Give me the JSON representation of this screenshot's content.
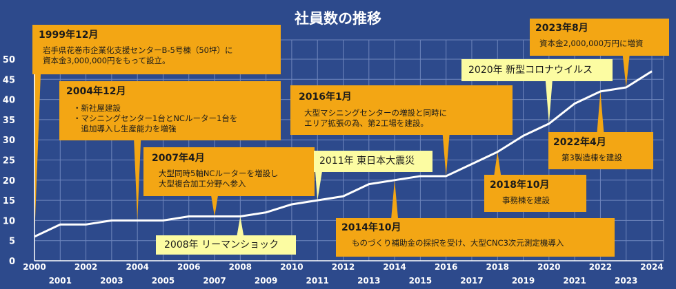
{
  "chart_data": {
    "type": "line",
    "title": "社員数の推移",
    "x": [
      2000,
      2001,
      2002,
      2003,
      2004,
      2005,
      2006,
      2007,
      2008,
      2009,
      2010,
      2011,
      2012,
      2013,
      2014,
      2015,
      2016,
      2017,
      2018,
      2019,
      2020,
      2021,
      2022,
      2023,
      2024
    ],
    "series": [
      {
        "values": [
          6,
          9,
          9,
          10,
          10,
          10,
          11,
          11,
          11,
          12,
          14,
          15,
          16,
          19,
          20,
          21,
          21,
          24,
          27,
          31,
          34,
          39,
          42,
          43,
          47
        ]
      }
    ],
    "xlim": [
      2000,
      2024
    ],
    "ylim": [
      0,
      50
    ],
    "yticks": [
      0,
      5,
      10,
      15,
      20,
      25,
      30,
      35,
      40,
      45,
      50
    ],
    "xticks_top": [
      "2000",
      "2002",
      "2004",
      "2006",
      "2008",
      "2010",
      "2012",
      "2014",
      "2016",
      "2018",
      "2020",
      "2022",
      "2024"
    ],
    "xticks_bottom": [
      "2001",
      "2003",
      "2005",
      "2007",
      "2009",
      "2011",
      "2013",
      "2015",
      "2017",
      "2019",
      "2021",
      "2023"
    ],
    "grid": true,
    "colors": {
      "background": "#2d4a8c",
      "grid": "#6f86bd",
      "line": "#ffffff",
      "callout_orange": "#f3a614",
      "callout_yellow": "#fcfca2"
    }
  },
  "annotations": [
    {
      "id": "a1999",
      "style": "orange",
      "date": "1999年12月",
      "body": "岩手県花巻市企業化支援センターB-5号棟（50坪）に\n資本金3,000,000円をもって設立。",
      "year": 2000,
      "value": 6
    },
    {
      "id": "a2004",
      "style": "orange",
      "date": "2004年12月",
      "body": "・新社屋建設\n・マシニングセンター1台とNCルーター1台を\n　追加導入し生産能力を増強",
      "year": 2004,
      "value": 10
    },
    {
      "id": "a2007",
      "style": "orange",
      "date": "2007年4月",
      "body": "大型同時5軸NCルーターを増設し\n大型複合加工分野へ参入",
      "year": 2007,
      "value": 11
    },
    {
      "id": "a2008",
      "style": "yellow",
      "text": "2008年 リーマンショック",
      "year": 2008,
      "value": 11
    },
    {
      "id": "a2011",
      "style": "yellow",
      "text": "2011年 東日本大震災",
      "year": 2011,
      "value": 15
    },
    {
      "id": "a2014",
      "style": "orange",
      "date": "2014年10月",
      "body": "ものづくり補助金の採択を受け、大型CNC3次元測定機導入",
      "year": 2014,
      "value": 20
    },
    {
      "id": "a2016",
      "style": "orange",
      "date": "2016年1月",
      "body": "大型マシニングセンターの増設と同時に\nエリア拡張の為、第2工場を建設。",
      "year": 2016,
      "value": 21
    },
    {
      "id": "a2018",
      "style": "orange",
      "date": "2018年10月",
      "body": "事務棟を建設",
      "year": 2018,
      "value": 27
    },
    {
      "id": "a2020",
      "style": "yellow",
      "text": "2020年 新型コロナウイルス",
      "year": 2020,
      "value": 34
    },
    {
      "id": "a2022",
      "style": "orange",
      "date": "2022年4月",
      "body": "第3製造棟を建設",
      "year": 2022,
      "value": 42
    },
    {
      "id": "a2023",
      "style": "orange",
      "date": "2023年8月",
      "body": "資本金2,000,000万円に増資",
      "year": 2023,
      "value": 43
    }
  ]
}
